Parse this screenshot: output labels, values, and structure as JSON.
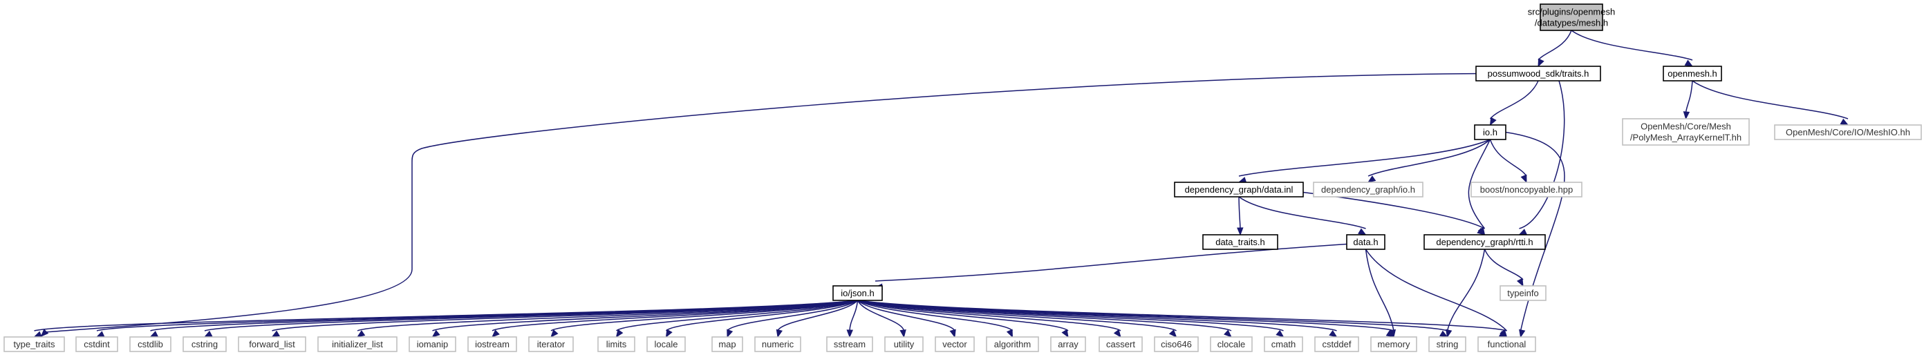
{
  "graph_title": "",
  "colors": {
    "edge": "#191970",
    "root_fill": "#bfbfbf",
    "external_border": "#bfbfbf",
    "local_border": "#000000"
  },
  "nodes": [
    {
      "id": "mesh_h",
      "kind": "root",
      "lines": [
        "src/plugins/openmesh",
        "/datatypes/mesh.h"
      ]
    },
    {
      "id": "possumwood_traits",
      "kind": "local",
      "lines": [
        "possumwood_sdk/traits.h"
      ]
    },
    {
      "id": "openmesh_h",
      "kind": "local",
      "lines": [
        "openmesh.h"
      ]
    },
    {
      "id": "polymesh_kernel",
      "kind": "external",
      "lines": [
        "OpenMesh/Core/Mesh",
        "/PolyMesh_ArrayKernelT.hh"
      ]
    },
    {
      "id": "meshio",
      "kind": "external",
      "lines": [
        "OpenMesh/Core/IO/MeshIO.hh"
      ]
    },
    {
      "id": "io_h",
      "kind": "local",
      "lines": [
        "io.h"
      ]
    },
    {
      "id": "data_inl",
      "kind": "local",
      "lines": [
        "dependency_graph/data.inl"
      ]
    },
    {
      "id": "dg_io_h",
      "kind": "external",
      "lines": [
        "dependency_graph/io.h"
      ]
    },
    {
      "id": "noncopyable",
      "kind": "external",
      "lines": [
        "boost/noncopyable.hpp"
      ]
    },
    {
      "id": "data_traits",
      "kind": "local",
      "lines": [
        "data_traits.h"
      ]
    },
    {
      "id": "data_h",
      "kind": "local",
      "lines": [
        "data.h"
      ]
    },
    {
      "id": "rtti_h",
      "kind": "local",
      "lines": [
        "dependency_graph/rtti.h"
      ]
    },
    {
      "id": "typeinfo",
      "kind": "external",
      "lines": [
        "typeinfo"
      ]
    },
    {
      "id": "json_h",
      "kind": "local",
      "lines": [
        "io/json.h"
      ]
    },
    {
      "id": "type_traits",
      "kind": "external",
      "lines": [
        "type_traits"
      ]
    },
    {
      "id": "cstdint",
      "kind": "external",
      "lines": [
        "cstdint"
      ]
    },
    {
      "id": "cstdlib",
      "kind": "external",
      "lines": [
        "cstdlib"
      ]
    },
    {
      "id": "cstring",
      "kind": "external",
      "lines": [
        "cstring"
      ]
    },
    {
      "id": "forward_list",
      "kind": "external",
      "lines": [
        "forward_list"
      ]
    },
    {
      "id": "initializer_list",
      "kind": "external",
      "lines": [
        "initializer_list"
      ]
    },
    {
      "id": "iomanip",
      "kind": "external",
      "lines": [
        "iomanip"
      ]
    },
    {
      "id": "iostream",
      "kind": "external",
      "lines": [
        "iostream"
      ]
    },
    {
      "id": "iterator",
      "kind": "external",
      "lines": [
        "iterator"
      ]
    },
    {
      "id": "limits",
      "kind": "external",
      "lines": [
        "limits"
      ]
    },
    {
      "id": "locale",
      "kind": "external",
      "lines": [
        "locale"
      ]
    },
    {
      "id": "map",
      "kind": "external",
      "lines": [
        "map"
      ]
    },
    {
      "id": "numeric",
      "kind": "external",
      "lines": [
        "numeric"
      ]
    },
    {
      "id": "sstream",
      "kind": "external",
      "lines": [
        "sstream"
      ]
    },
    {
      "id": "utility",
      "kind": "external",
      "lines": [
        "utility"
      ]
    },
    {
      "id": "vector",
      "kind": "external",
      "lines": [
        "vector"
      ]
    },
    {
      "id": "algorithm",
      "kind": "external",
      "lines": [
        "algorithm"
      ]
    },
    {
      "id": "array",
      "kind": "external",
      "lines": [
        "array"
      ]
    },
    {
      "id": "cassert",
      "kind": "external",
      "lines": [
        "cassert"
      ]
    },
    {
      "id": "ciso646",
      "kind": "external",
      "lines": [
        "ciso646"
      ]
    },
    {
      "id": "clocale",
      "kind": "external",
      "lines": [
        "clocale"
      ]
    },
    {
      "id": "cmath",
      "kind": "external",
      "lines": [
        "cmath"
      ]
    },
    {
      "id": "cstddef",
      "kind": "external",
      "lines": [
        "cstddef"
      ]
    },
    {
      "id": "memory",
      "kind": "external",
      "lines": [
        "memory"
      ]
    },
    {
      "id": "string",
      "kind": "external",
      "lines": [
        "string"
      ]
    },
    {
      "id": "functional",
      "kind": "external",
      "lines": [
        "functional"
      ]
    }
  ],
  "edges": [
    [
      "mesh_h",
      "possumwood_traits"
    ],
    [
      "mesh_h",
      "openmesh_h"
    ],
    [
      "openmesh_h",
      "polymesh_kernel"
    ],
    [
      "openmesh_h",
      "meshio"
    ],
    [
      "possumwood_traits",
      "io_h"
    ],
    [
      "possumwood_traits",
      "rtti_h"
    ],
    [
      "possumwood_traits",
      "type_traits"
    ],
    [
      "io_h",
      "data_inl"
    ],
    [
      "io_h",
      "dg_io_h"
    ],
    [
      "io_h",
      "noncopyable"
    ],
    [
      "io_h",
      "rtti_h"
    ],
    [
      "io_h",
      "functional"
    ],
    [
      "data_inl",
      "data_traits"
    ],
    [
      "data_inl",
      "data_h"
    ],
    [
      "data_inl",
      "rtti_h"
    ],
    [
      "data_h",
      "json_h"
    ],
    [
      "data_h",
      "memory"
    ],
    [
      "data_h",
      "functional"
    ],
    [
      "rtti_h",
      "typeinfo"
    ],
    [
      "rtti_h",
      "string"
    ],
    [
      "json_h",
      "type_traits"
    ],
    [
      "json_h",
      "cstdint"
    ],
    [
      "json_h",
      "cstdlib"
    ],
    [
      "json_h",
      "cstring"
    ],
    [
      "json_h",
      "forward_list"
    ],
    [
      "json_h",
      "initializer_list"
    ],
    [
      "json_h",
      "iomanip"
    ],
    [
      "json_h",
      "iostream"
    ],
    [
      "json_h",
      "iterator"
    ],
    [
      "json_h",
      "limits"
    ],
    [
      "json_h",
      "locale"
    ],
    [
      "json_h",
      "map"
    ],
    [
      "json_h",
      "numeric"
    ],
    [
      "json_h",
      "sstream"
    ],
    [
      "json_h",
      "utility"
    ],
    [
      "json_h",
      "vector"
    ],
    [
      "json_h",
      "algorithm"
    ],
    [
      "json_h",
      "array"
    ],
    [
      "json_h",
      "cassert"
    ],
    [
      "json_h",
      "ciso646"
    ],
    [
      "json_h",
      "clocale"
    ],
    [
      "json_h",
      "cmath"
    ],
    [
      "json_h",
      "cstddef"
    ],
    [
      "json_h",
      "memory"
    ],
    [
      "json_h",
      "string"
    ],
    [
      "json_h",
      "functional"
    ]
  ]
}
